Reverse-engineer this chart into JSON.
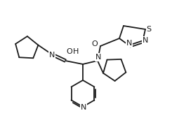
{
  "bg_color": "#ffffff",
  "line_color": "#1a1a1a",
  "line_width": 1.3,
  "font_size": 7.5,
  "cyclopentane_r": 16,
  "pyridine_r": 18,
  "thiadiazole_r": 15,
  "labels": {
    "O_left": "O",
    "H_left": "H",
    "N_left": "N",
    "N_right": "N",
    "O_right": "O",
    "S": "S",
    "N3": "N",
    "N4": "N",
    "Npy": "N"
  }
}
